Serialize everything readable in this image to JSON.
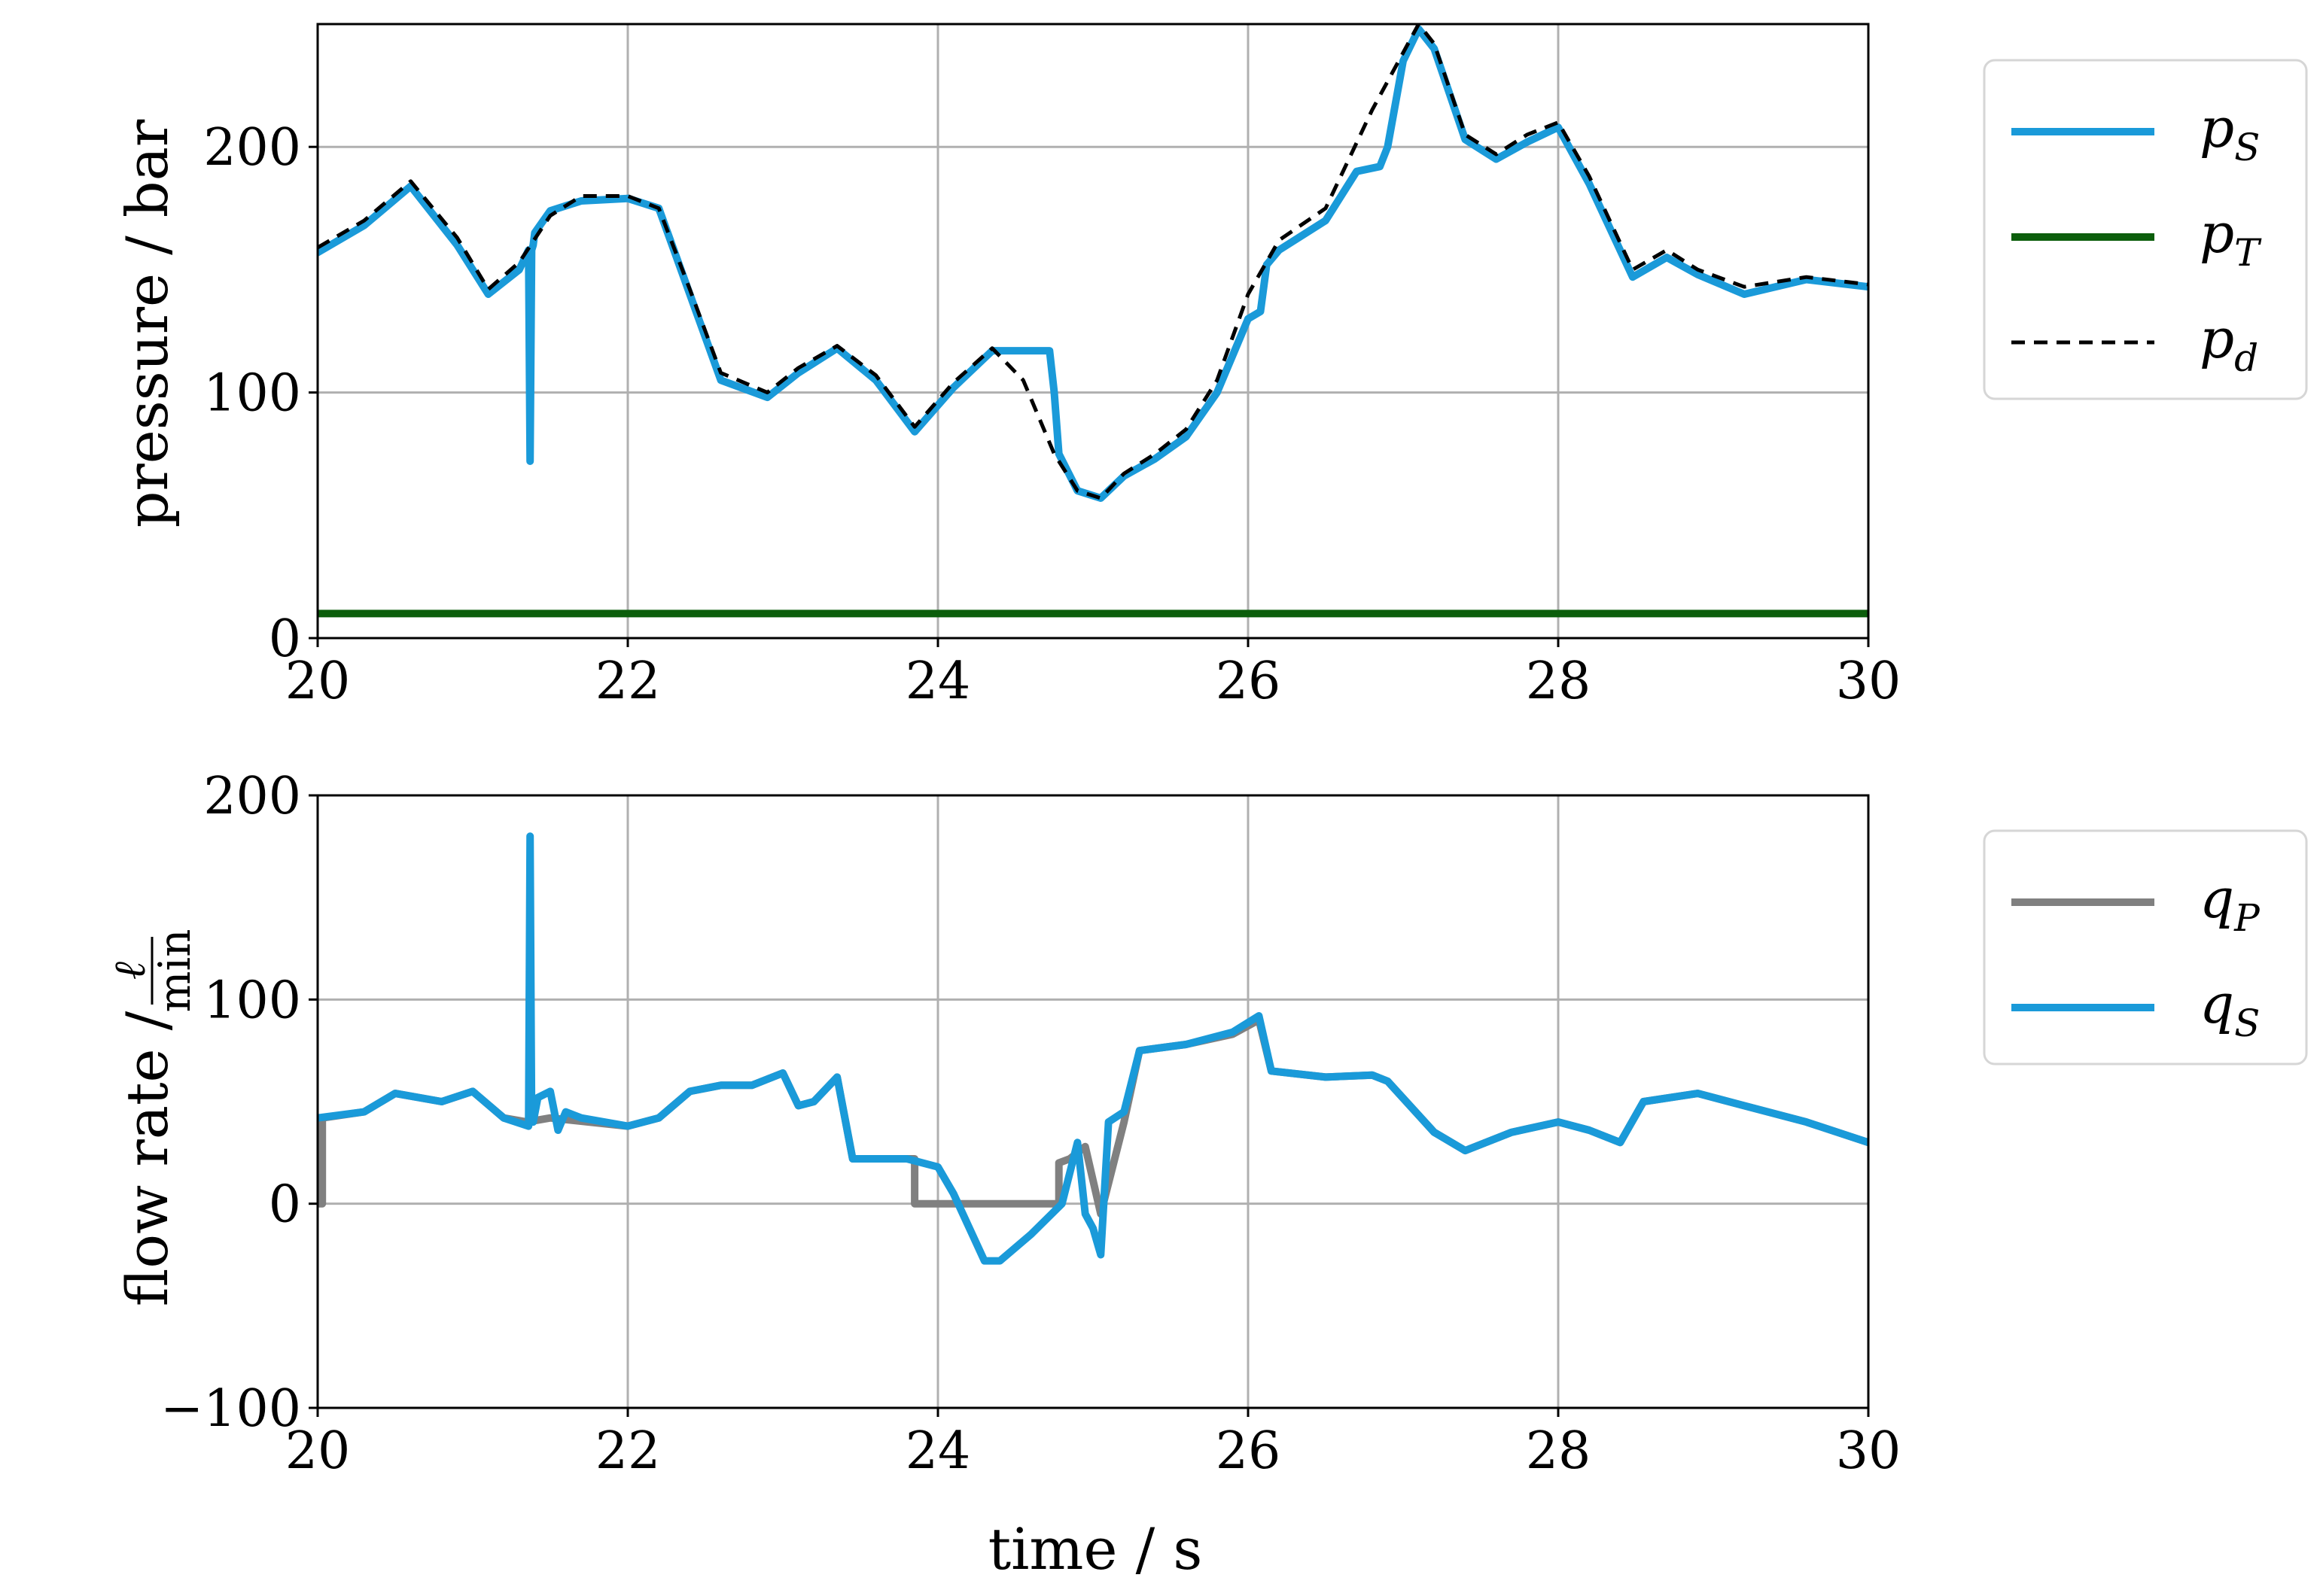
{
  "chart_data": [
    {
      "type": "line",
      "xlabel": "",
      "ylabel": "pressure / bar",
      "xlim": [
        20,
        30
      ],
      "ylim": [
        0,
        250
      ],
      "xticks": [
        "20",
        "22",
        "24",
        "26",
        "28",
        "30"
      ],
      "yticks": [
        "0",
        "100",
        "200"
      ],
      "grid": true,
      "legend_position": "outside-right",
      "series": [
        {
          "name": "p_S",
          "legend_base": "p",
          "legend_sub": "S",
          "color": "#1a9ad9",
          "style": "solid",
          "x": [
            20.0,
            20.3,
            20.6,
            20.9,
            21.1,
            21.3,
            21.36,
            21.37,
            21.38,
            21.39,
            21.4,
            21.5,
            21.7,
            22.0,
            22.2,
            22.4,
            22.6,
            22.9,
            23.1,
            23.35,
            23.6,
            23.85,
            24.1,
            24.35,
            24.5,
            24.72,
            24.75,
            24.78,
            24.9,
            25.05,
            25.2,
            25.4,
            25.6,
            25.8,
            26.0,
            26.08,
            26.12,
            26.2,
            26.5,
            26.7,
            26.85,
            26.9,
            27.0,
            27.1,
            27.2,
            27.4,
            27.6,
            27.8,
            28.0,
            28.2,
            28.48,
            28.7,
            28.9,
            29.2,
            29.6,
            30.0
          ],
          "y": [
            157,
            168,
            184,
            160,
            140,
            150,
            158,
            72,
            158,
            160,
            165,
            174,
            178,
            179,
            175,
            140,
            105,
            98,
            108,
            118,
            105,
            84,
            102,
            117,
            117,
            117,
            100,
            75,
            60,
            57,
            66,
            73,
            82,
            100,
            130,
            133,
            152,
            158,
            170,
            190,
            192,
            200,
            235,
            248,
            240,
            203,
            195,
            202,
            208,
            185,
            147,
            155,
            148,
            140,
            146,
            143
          ]
        },
        {
          "name": "p_T",
          "legend_base": "p",
          "legend_sub": "T",
          "color": "#0c5e0c",
          "style": "solid",
          "x": [
            20.0,
            30.0
          ],
          "y": [
            10,
            10
          ]
        },
        {
          "name": "p_d",
          "legend_base": "p",
          "legend_sub": "d",
          "color": "#000000",
          "style": "dashed",
          "x": [
            20.0,
            20.3,
            20.6,
            20.9,
            21.1,
            21.3,
            21.5,
            21.7,
            22.0,
            22.2,
            22.4,
            22.6,
            22.9,
            23.1,
            23.35,
            23.6,
            23.85,
            24.1,
            24.35,
            24.55,
            24.75,
            24.9,
            25.05,
            25.2,
            25.4,
            25.6,
            25.8,
            26.0,
            26.2,
            26.5,
            26.8,
            27.1,
            27.2,
            27.4,
            27.6,
            27.8,
            28.0,
            28.2,
            28.48,
            28.7,
            28.9,
            29.2,
            29.6,
            30.0
          ],
          "y": [
            159,
            170,
            186,
            163,
            142,
            153,
            172,
            180,
            180,
            175,
            142,
            108,
            100,
            110,
            119,
            107,
            86,
            104,
            118,
            105,
            75,
            60,
            57,
            67,
            75,
            85,
            105,
            140,
            162,
            175,
            215,
            250,
            242,
            205,
            197,
            205,
            210,
            188,
            150,
            158,
            150,
            143,
            147,
            144
          ]
        }
      ]
    },
    {
      "type": "line",
      "xlabel": "time / s",
      "ylabel_text": "flow rate /",
      "ylabel_frac_num": "ℓ",
      "ylabel_frac_den": "min",
      "xlim": [
        20,
        30
      ],
      "ylim": [
        -100,
        200
      ],
      "xticks": [
        "20",
        "22",
        "24",
        "26",
        "28",
        "30"
      ],
      "yticks": [
        "−100",
        "0",
        "100",
        "200"
      ],
      "grid": true,
      "legend_position": "outside-right",
      "series": [
        {
          "name": "q_P",
          "legend_base": "q",
          "legend_sub": "P",
          "color": "#808080",
          "style": "solid",
          "x": [
            20.0,
            20.03,
            20.03,
            20.3,
            20.5,
            20.8,
            21.0,
            21.2,
            21.35,
            21.5,
            22.0,
            22.2,
            22.4,
            22.6,
            22.8,
            23.0,
            23.1,
            23.2,
            23.35,
            23.45,
            23.8,
            23.85,
            23.85,
            24.27,
            24.27,
            24.78,
            24.78,
            24.85,
            24.95,
            25.05,
            25.2,
            25.3,
            25.6,
            25.9,
            26.07,
            26.15,
            26.5,
            26.8,
            26.9,
            27.2,
            27.4,
            27.7,
            28.0,
            28.2,
            28.4,
            28.55,
            28.9,
            29.2,
            29.6,
            30.0
          ],
          "y": [
            0,
            0,
            42,
            45,
            54,
            50,
            55,
            42,
            40,
            42,
            38,
            42,
            55,
            58,
            58,
            64,
            48,
            50,
            62,
            22,
            22,
            22,
            0,
            0,
            0,
            0,
            20,
            22,
            28,
            -5,
            40,
            75,
            78,
            83,
            90,
            65,
            62,
            63,
            60,
            35,
            26,
            35,
            40,
            36,
            30,
            50,
            54,
            48,
            40,
            30
          ]
        },
        {
          "name": "q_S",
          "legend_base": "q",
          "legend_sub": "S",
          "color": "#1a9ad9",
          "style": "solid",
          "x": [
            20.0,
            20.3,
            20.5,
            20.8,
            21.0,
            21.2,
            21.36,
            21.37,
            21.38,
            21.39,
            21.42,
            21.5,
            21.55,
            21.6,
            21.7,
            22.0,
            22.2,
            22.4,
            22.6,
            22.8,
            23.0,
            23.1,
            23.2,
            23.35,
            23.45,
            23.8,
            24.0,
            24.1,
            24.3,
            24.4,
            24.6,
            24.8,
            24.9,
            24.95,
            25.0,
            25.05,
            25.1,
            25.2,
            25.3,
            25.6,
            25.9,
            26.07,
            26.15,
            26.5,
            26.8,
            26.9,
            27.2,
            27.4,
            27.7,
            28.0,
            28.2,
            28.4,
            28.55,
            28.9,
            29.2,
            29.6,
            30.0
          ],
          "y": [
            42,
            45,
            54,
            50,
            55,
            42,
            38,
            180,
            40,
            40,
            52,
            55,
            36,
            45,
            42,
            38,
            42,
            55,
            58,
            58,
            64,
            48,
            50,
            62,
            22,
            22,
            18,
            5,
            -28,
            -28,
            -15,
            0,
            30,
            -5,
            -12,
            -25,
            40,
            45,
            75,
            78,
            84,
            92,
            65,
            62,
            63,
            60,
            35,
            26,
            35,
            40,
            36,
            30,
            50,
            54,
            48,
            40,
            30
          ]
        }
      ]
    }
  ]
}
